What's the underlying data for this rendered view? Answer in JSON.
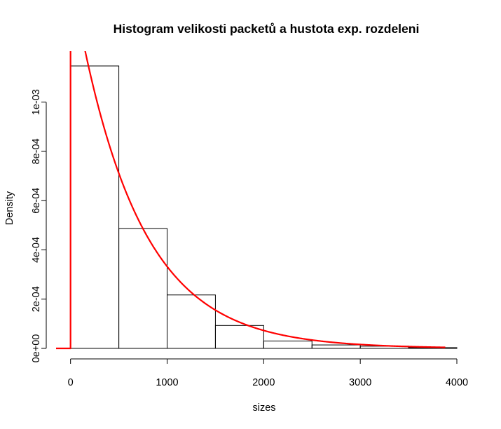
{
  "chart_data": {
    "type": "bar",
    "title": "Histogram velikosti packetů a hustota exp. rozdeleni",
    "xlabel": "sizes",
    "ylabel": "Density",
    "xlim": [
      -150,
      4000
    ],
    "ylim": [
      0,
      0.00115
    ],
    "x_ticks": [
      0,
      1000,
      2000,
      3000,
      4000
    ],
    "x_tick_labels": [
      "0",
      "1000",
      "2000",
      "3000",
      "4000"
    ],
    "y_ticks": [
      0,
      0.0002,
      0.0004,
      0.0006,
      0.0008,
      0.001
    ],
    "y_tick_labels": [
      "0e+00",
      "2e-04",
      "4e-04",
      "6e-04",
      "8e-04",
      "1e-03"
    ],
    "bins": [
      {
        "from": 0,
        "to": 500,
        "value": 0.001147
      },
      {
        "from": 500,
        "to": 1000,
        "value": 0.000487
      },
      {
        "from": 1000,
        "to": 1500,
        "value": 0.000217
      },
      {
        "from": 1500,
        "to": 2000,
        "value": 9.3e-05
      },
      {
        "from": 2000,
        "to": 2500,
        "value": 3e-05
      },
      {
        "from": 2500,
        "to": 3000,
        "value": 1.4e-05
      },
      {
        "from": 3000,
        "to": 3500,
        "value": 9e-06
      },
      {
        "from": 3500,
        "to": 4000,
        "value": 3e-06
      }
    ],
    "series": [
      {
        "type": "line",
        "function": "exponential density",
        "rate": 0.00152,
        "x_from": -150,
        "x_to": 3880,
        "color": "#ff0000"
      }
    ],
    "grid": false
  }
}
